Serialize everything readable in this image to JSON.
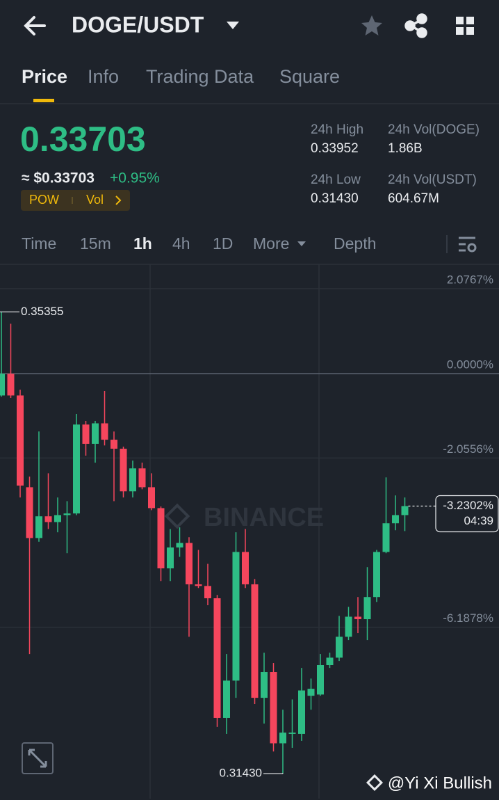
{
  "header": {
    "title": "DOGE/USDT"
  },
  "tabs": [
    "Price",
    "Info",
    "Trading Data",
    "Square"
  ],
  "ticker": {
    "price": "0.33703",
    "approx": "≈ $0.33703",
    "change": "+0.95%",
    "tags": [
      "POW",
      "Vol"
    ],
    "stats": [
      {
        "label": "24h High",
        "value": "0.33952"
      },
      {
        "label": "24h Vol(DOGE)",
        "value": "1.86B"
      },
      {
        "label": "24h Low",
        "value": "0.31430"
      },
      {
        "label": "24h Vol(USDT)",
        "value": "604.67M"
      }
    ]
  },
  "intervals": [
    "Time",
    "15m",
    "1h",
    "4h",
    "1D",
    "More",
    "Depth"
  ],
  "chart_data": {
    "type": "candlestick",
    "up_color": "#2ebd85",
    "down_color": "#f6465d",
    "ylim": [
      -10.37,
      2.67
    ],
    "yticks": [
      {
        "value": 2.0767,
        "label": "2.0767%"
      },
      {
        "value": 0,
        "label": "0.0000%"
      },
      {
        "value": -2.0556,
        "label": "-2.0556%"
      },
      {
        "value": -6.1878,
        "label": "-6.1878%"
      }
    ],
    "open": [
      -0.53,
      0,
      -0.53,
      -2.77,
      -4.01,
      -3.48,
      -3.62,
      -3.45,
      -3.41,
      -1.24,
      -1.71,
      -1.21,
      -1.61,
      -1.83,
      -2.87,
      -2.31,
      -2.77,
      -3.28,
      -4.75,
      -4.24,
      -4.13,
      -5.14,
      -5.18,
      -5.48,
      -8.4,
      -7.49,
      -4.35,
      -5.14,
      -7.91,
      -7.28,
      -9.02,
      -8.79,
      -8.79,
      -7.86,
      -7.83,
      -7.11,
      -6.93,
      -6.42,
      -5.93,
      -5.99,
      -5.45,
      -4.35,
      -3.65,
      -3.45
    ],
    "high": [
      1.51,
      1.22,
      -0.39,
      -2.51,
      -1.41,
      -2.43,
      -3.02,
      -3.11,
      -0.98,
      -1.15,
      -1.15,
      -0.42,
      -1.41,
      -1.78,
      -2.12,
      -2.17,
      -2.43,
      -3.24,
      -3.79,
      -3.75,
      -3.99,
      -4.3,
      -4.64,
      -5.4,
      -6.84,
      -3.87,
      -3.79,
      -5.01,
      -6.81,
      -7.06,
      -8.2,
      -7.95,
      -7.18,
      -7.44,
      -6.84,
      -6.81,
      -5.91,
      -5.69,
      -5.45,
      -4.72,
      -4.3,
      -2.53,
      -2.97,
      -3.02
    ],
    "low": [
      -0.56,
      -0.59,
      -3.02,
      -6.84,
      -4.1,
      -3.79,
      -3.87,
      -4.38,
      -3.45,
      -2.0,
      -2.17,
      -1.75,
      -3.11,
      -3.02,
      -3.02,
      -2.82,
      -3.33,
      -5.06,
      -5.06,
      -4.47,
      -6.42,
      -5.23,
      -5.65,
      -8.62,
      -8.79,
      -7.91,
      -5.23,
      -8.06,
      -8.54,
      -9.22,
      -9.76,
      -9.13,
      -8.96,
      -8.2,
      -7.86,
      -7.18,
      -7.01,
      -6.5,
      -6.33,
      -6.5,
      -5.57,
      -4.38,
      -3.82,
      -3.84
    ],
    "close": [
      0,
      -0.53,
      -2.73,
      -4.01,
      -3.48,
      -3.62,
      -3.45,
      -3.41,
      -1.24,
      -1.71,
      -1.21,
      -1.61,
      -1.83,
      -2.87,
      -2.31,
      -2.77,
      -3.28,
      -4.75,
      -4.24,
      -4.13,
      -5.14,
      -5.18,
      -5.48,
      -8.4,
      -7.49,
      -4.35,
      -5.14,
      -7.91,
      -7.28,
      -9.02,
      -8.76,
      -8.76,
      -7.73,
      -7.69,
      -7.11,
      -6.93,
      -6.42,
      -5.93,
      -5.99,
      -5.45,
      -4.35,
      -3.65,
      -3.45,
      -3.23
    ],
    "annotations": {
      "high": "0.35355",
      "low": "0.31430",
      "current": "-3.2302%",
      "countdown": "04:39"
    },
    "watermark": "BINANCE"
  },
  "footer": {
    "watermark": "@Yi Xi Bullish"
  }
}
